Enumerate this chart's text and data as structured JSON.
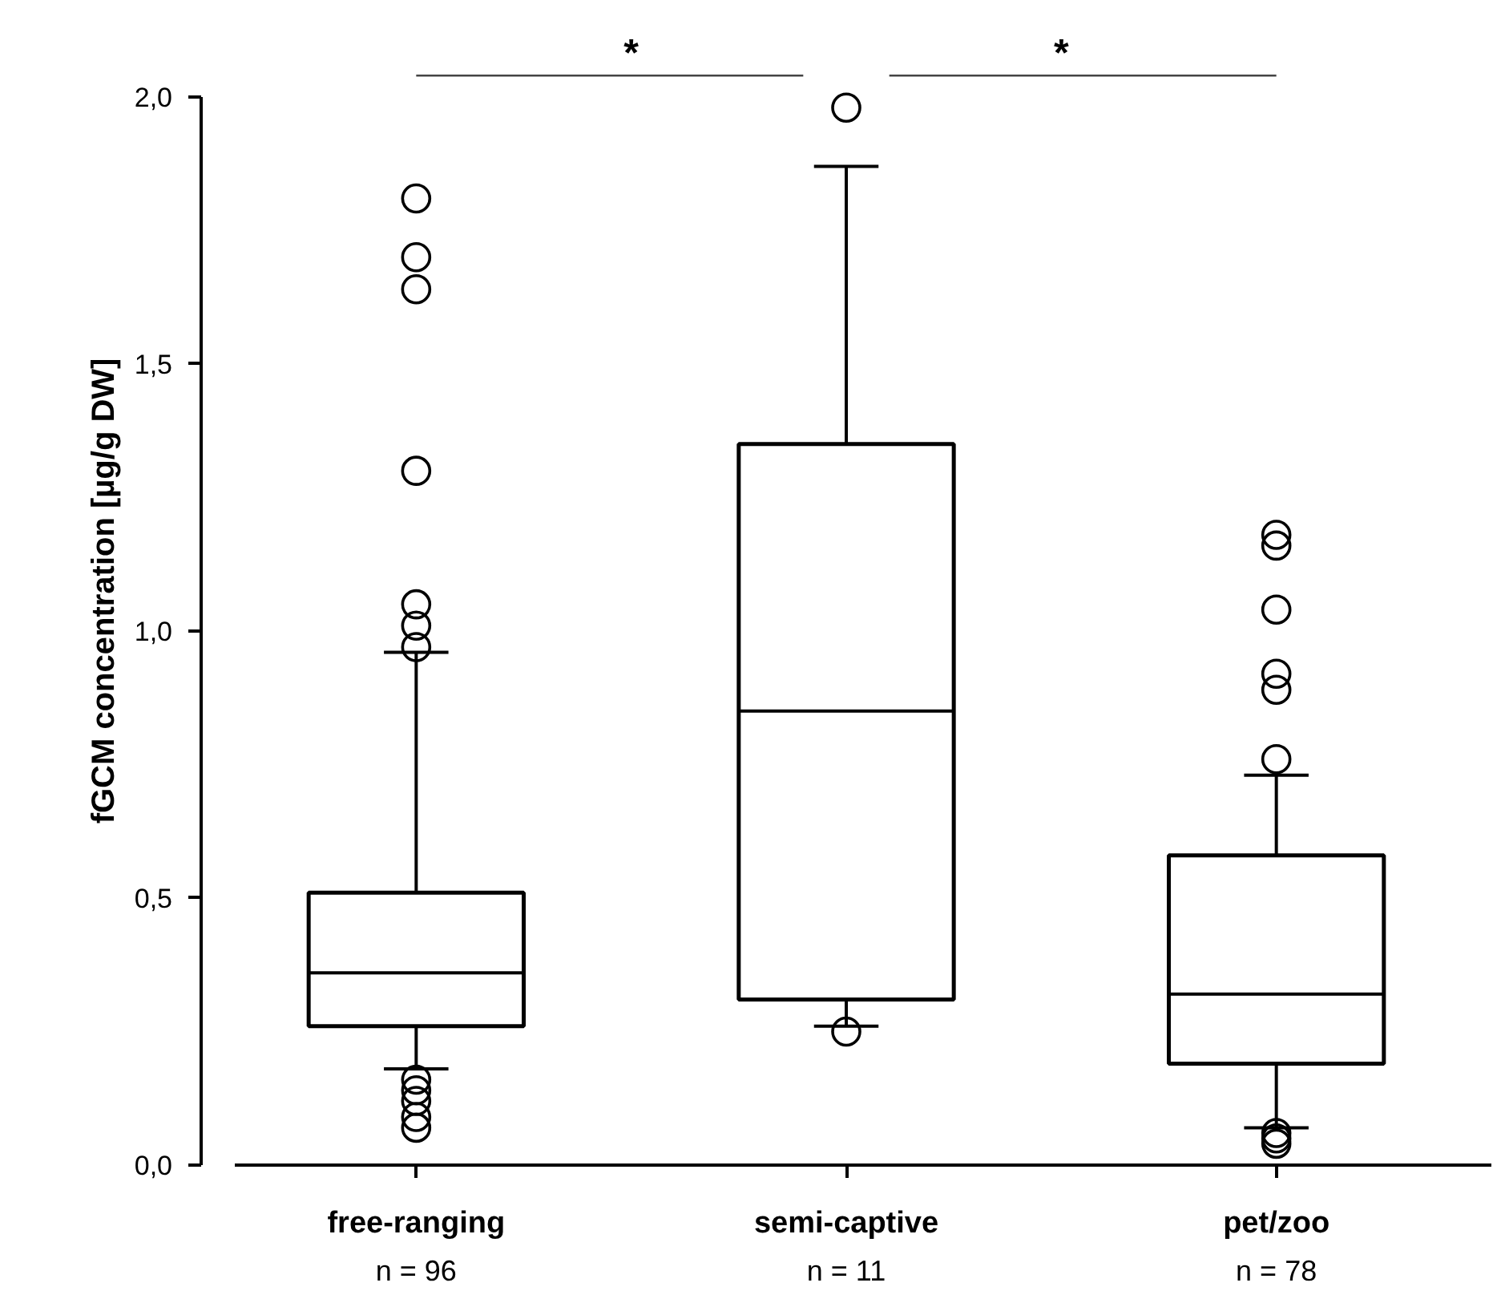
{
  "chart_data": {
    "type": "box",
    "ylabel": "fGCM concentration [µg/g DW]",
    "categories": [
      "free-ranging",
      "semi-captive",
      "pet/zoo"
    ],
    "boxes": [
      {
        "low": 0.18,
        "q1": 0.26,
        "median": 0.36,
        "q3": 0.51,
        "high": 0.96,
        "outliers": [
          1.81,
          1.7,
          1.64,
          1.3,
          1.05,
          1.01,
          0.97,
          0.16,
          0.14,
          0.12,
          0.09,
          0.07
        ]
      },
      {
        "low": 0.26,
        "q1": 0.31,
        "median": 0.85,
        "q3": 1.35,
        "high": 1.87,
        "outliers": [
          1.98,
          0.25
        ]
      },
      {
        "low": 0.07,
        "q1": 0.19,
        "median": 0.32,
        "q3": 0.58,
        "high": 0.73,
        "outliers": [
          1.18,
          1.16,
          1.04,
          0.92,
          0.89,
          0.76,
          0.06,
          0.05,
          0.04
        ]
      }
    ],
    "ylim": [
      0,
      2.0
    ],
    "yticks": [
      {
        "value": 0,
        "label": "0,0"
      },
      {
        "value": 0.5,
        "label": "0,5"
      },
      {
        "value": 1.0,
        "label": "1,0"
      },
      {
        "value": 1.5,
        "label": "1,5"
      },
      {
        "value": 2.0,
        "label": "2,0"
      }
    ],
    "marker": "circle",
    "grid": false,
    "annotations": [
      "n = 96",
      "n = 11",
      "n = 78",
      "*",
      "*"
    ]
  }
}
